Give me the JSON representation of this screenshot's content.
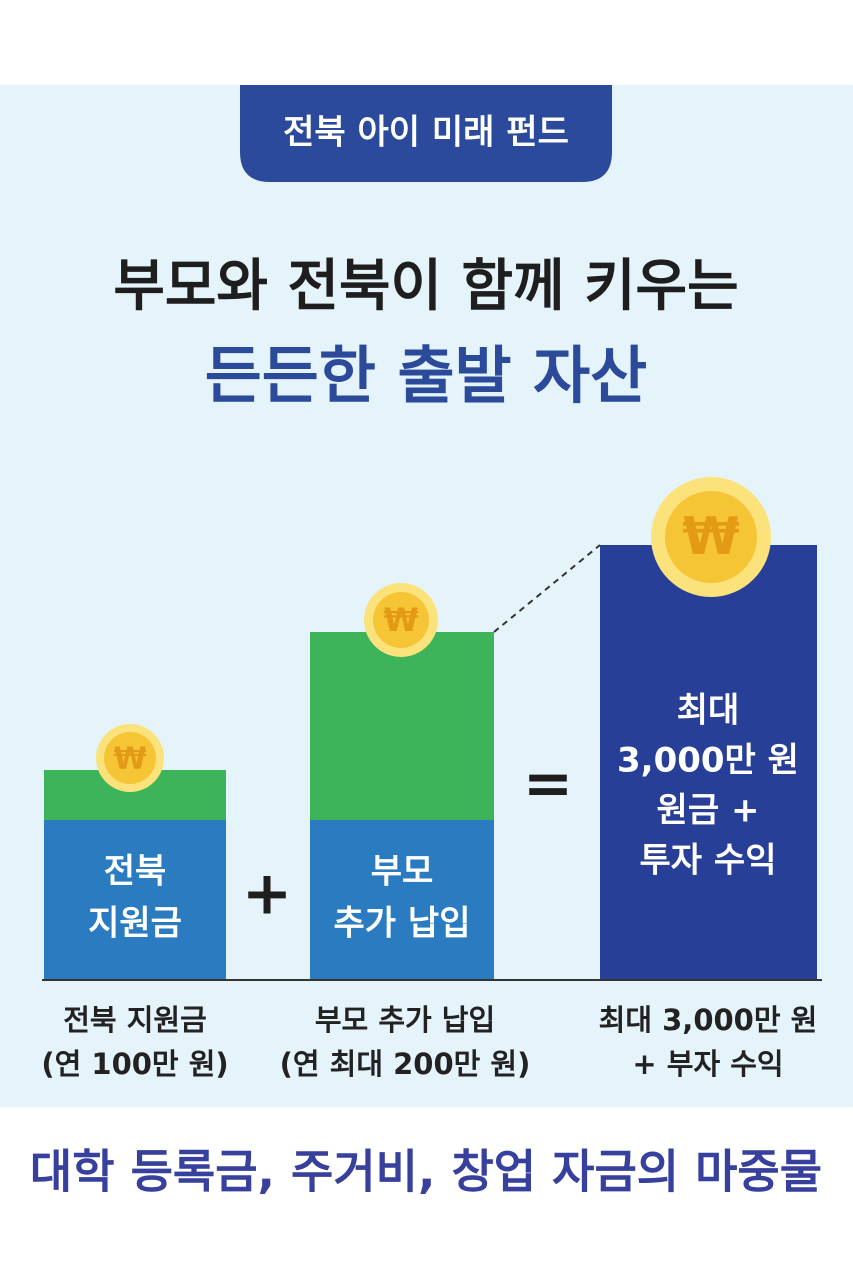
{
  "badge": "전북 아이 미래 펀드",
  "headline": {
    "line1": "부모와 전북이 함께 키우는",
    "line2": "든든한 출발 자산"
  },
  "coin_symbol": "₩",
  "blocks": [
    {
      "lines": [
        "전북",
        "지원금"
      ],
      "caption": [
        "전북 지원금",
        "(연 100만 원)"
      ]
    },
    {
      "lines": [
        "부모",
        "추가 납입"
      ],
      "caption": [
        "부모 추가 납입",
        "(연 최대 200만 원)"
      ]
    },
    {
      "lines": [
        "최대",
        "3,000만 원",
        "원금 +",
        "투자 수익"
      ],
      "caption": [
        "최대 3,000만 원",
        "+ 부자 수익"
      ]
    }
  ],
  "operators": [
    "+",
    "="
  ],
  "footer": "대학 등록금, 주거비, 창업 자금의 마중물"
}
